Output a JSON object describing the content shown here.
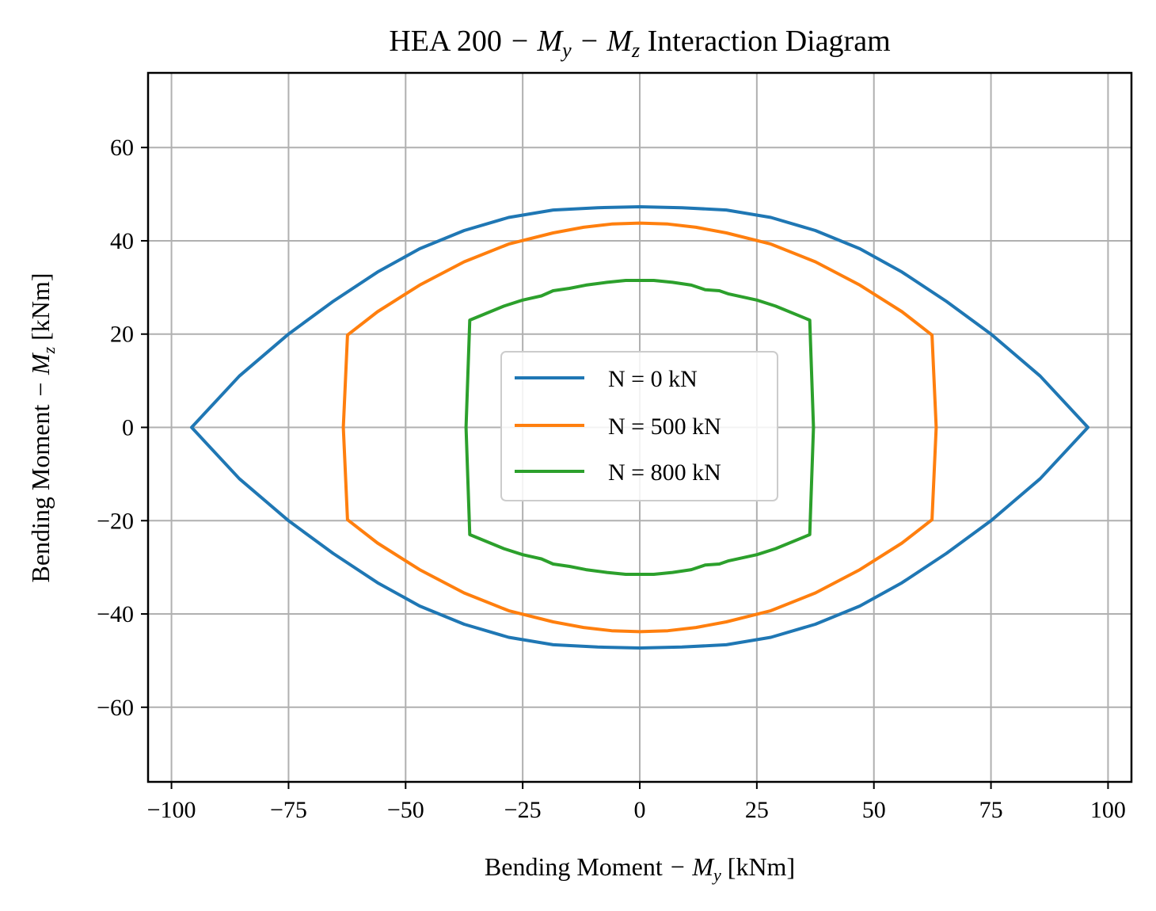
{
  "chart_data": {
    "type": "line",
    "title": {
      "prefix": "HEA 200 ",
      "math": "− M",
      "sub1": "y",
      "math2": " − M",
      "sub2": "z",
      "suffix": " Interaction Diagram"
    },
    "xlabel": {
      "text": "Bending Moment ",
      "math": "− M",
      "sub": "y",
      "unit": " [kNm]"
    },
    "ylabel": {
      "text": "Bending Moment ",
      "math": "− M",
      "sub": "z",
      "unit": " [kNm]"
    },
    "xlim": [
      -105,
      105
    ],
    "ylim": [
      -76,
      76
    ],
    "xticks": [
      -100,
      -75,
      -50,
      -25,
      0,
      25,
      50,
      75,
      100
    ],
    "xtick_labels": [
      "−100",
      "−75",
      "−50",
      "−25",
      "0",
      "25",
      "50",
      "75",
      "100"
    ],
    "yticks": [
      -60,
      -40,
      -20,
      0,
      20,
      40,
      60
    ],
    "ytick_labels": [
      "−60",
      "−40",
      "−20",
      "0",
      "20",
      "40",
      "60"
    ],
    "grid": true,
    "legend_position": "center",
    "series": [
      {
        "name": "N = 0 kN",
        "color": "#1f77b4",
        "x": [
          -95.7,
          -85.5,
          -75,
          -65.5,
          -56,
          -47,
          -37.5,
          -28,
          -18.5,
          -9,
          0,
          9,
          18.5,
          28,
          37.5,
          47,
          56,
          65.5,
          75,
          85.5,
          95.7,
          85.5,
          75,
          65.5,
          56,
          47,
          37.5,
          28,
          18.5,
          9,
          0,
          -9,
          -18.5,
          -28,
          -37.5,
          -47,
          -56,
          -65.5,
          -75,
          -85.5,
          -95.7
        ],
        "y": [
          0,
          11,
          20,
          27,
          33.3,
          38.3,
          42.2,
          45,
          46.6,
          47.1,
          47.3,
          47.1,
          46.6,
          45,
          42.2,
          38.3,
          33.3,
          27,
          20,
          11,
          0,
          -11,
          -20,
          -27,
          -33.3,
          -38.3,
          -42.2,
          -45,
          -46.6,
          -47.1,
          -47.3,
          -47.1,
          -46.6,
          -45,
          -42.2,
          -38.3,
          -33.3,
          -27,
          -20,
          -11,
          0
        ]
      },
      {
        "name": "N = 500 kN",
        "color": "#ff7f0e",
        "x": [
          -63.3,
          -62.4,
          -56,
          -47,
          -37.5,
          -28,
          -18.5,
          -12,
          -6,
          0,
          6,
          12,
          18.5,
          28,
          37.5,
          47,
          56,
          62.4,
          63.3,
          62.4,
          56,
          47,
          37.5,
          28,
          18.5,
          12,
          6,
          0,
          -6,
          -12,
          -18.5,
          -28,
          -37.5,
          -47,
          -56,
          -62.4,
          -63.3
        ],
        "y": [
          0,
          19.8,
          24.8,
          30.5,
          35.5,
          39.3,
          41.7,
          42.9,
          43.6,
          43.8,
          43.6,
          42.9,
          41.7,
          39.3,
          35.5,
          30.5,
          24.8,
          19.8,
          0,
          -19.8,
          -24.8,
          -30.5,
          -35.5,
          -39.3,
          -41.7,
          -42.9,
          -43.6,
          -43.8,
          -43.6,
          -42.9,
          -41.7,
          -39.3,
          -35.5,
          -30.5,
          -24.8,
          -19.8,
          0
        ]
      },
      {
        "name": "N = 800 kN",
        "color": "#2ca02c",
        "x": [
          -37.1,
          -36.3,
          -29,
          -25,
          -21,
          -18.5,
          -15,
          -11.5,
          -7,
          -3,
          3,
          7,
          11,
          14,
          17,
          19,
          25,
          29,
          36.3,
          37.1,
          36.3,
          29,
          25,
          19,
          17,
          14,
          11,
          7,
          3,
          -3,
          -7,
          -11.5,
          -15,
          -18.5,
          -21,
          -25,
          -29,
          -36.3,
          -37.1
        ],
        "y": [
          0,
          23,
          26,
          27.3,
          28.2,
          29.3,
          29.8,
          30.5,
          31.1,
          31.5,
          31.5,
          31.1,
          30.5,
          29.5,
          29.3,
          28.6,
          27.3,
          26,
          23,
          0,
          -23,
          -26,
          -27.3,
          -28.6,
          -29.3,
          -29.5,
          -30.5,
          -31.1,
          -31.5,
          -31.5,
          -31.1,
          -30.5,
          -29.8,
          -29.3,
          -28.2,
          -27.3,
          -26,
          -23,
          0
        ]
      }
    ]
  }
}
